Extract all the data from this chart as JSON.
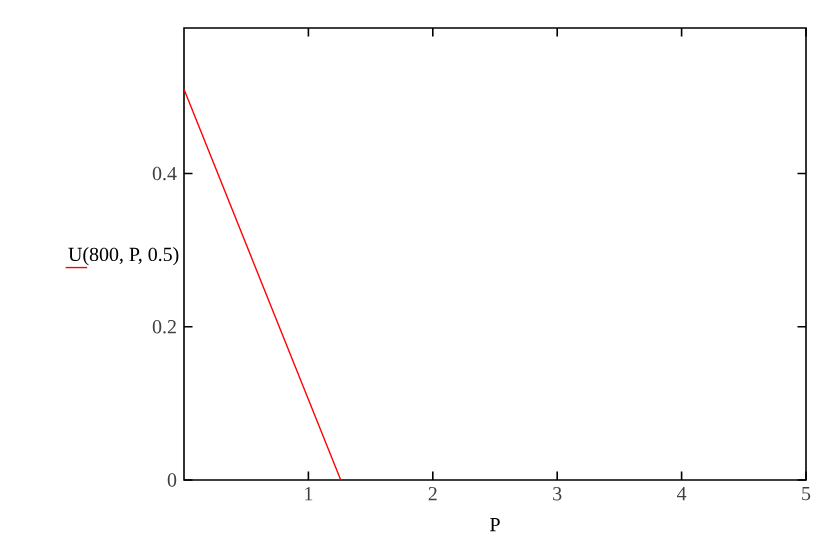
{
  "chart_data": {
    "type": "line",
    "xlabel": "P",
    "xlim": [
      0,
      5
    ],
    "ylim": [
      0,
      0.59
    ],
    "xticks": [
      1,
      2,
      3,
      4,
      5
    ],
    "yticks": [
      0,
      0.2,
      0.4
    ],
    "legend": "left",
    "grid": false,
    "series": [
      {
        "name": "U(800, P, 0.5)",
        "color": "#ff0000",
        "x": [
          0,
          1.26
        ],
        "values": [
          0.51,
          0
        ]
      }
    ]
  }
}
